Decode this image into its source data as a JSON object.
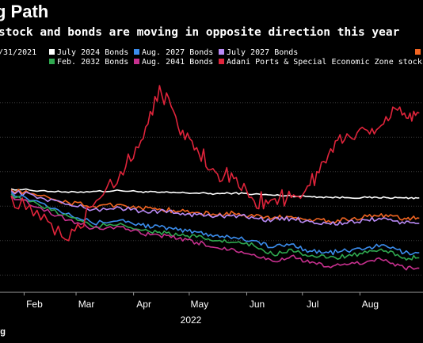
{
  "chart_data": {
    "type": "line",
    "title": "g Path",
    "subtitle": "stock and bonds are moving in opposite direction this year",
    "x_months": [
      "Feb",
      "Mar",
      "Apr",
      "May",
      "Jun",
      "Jul",
      "Aug"
    ],
    "x_year": "2022",
    "legend_placement": "top",
    "grid": true,
    "source": "rg",
    "legend_partial": "/31/2021",
    "x": [
      "2022-01-25",
      "2022-02-10",
      "2022-02-25",
      "2022-03-10",
      "2022-03-25",
      "2022-04-05",
      "2022-04-15",
      "2022-04-25",
      "2022-05-05",
      "2022-05-15",
      "2022-05-25",
      "2022-06-05",
      "2022-06-15",
      "2022-06-25",
      "2022-07-05",
      "2022-07-15",
      "2022-07-25",
      "2022-08-05",
      "2022-08-15",
      "2022-08-25",
      "2022-09-02"
    ],
    "series": [
      {
        "name": "July 2024 Bonds",
        "color": "#ffffff",
        "values": [
          105,
          104.5,
          104,
          104.3,
          104.5,
          104.2,
          104,
          103.9,
          103.8,
          103.6,
          103.8,
          103.5,
          103.2,
          103,
          102.8,
          102.6,
          102.5,
          102.5,
          102.5,
          102.4,
          102.4
        ]
      },
      {
        "name": "Aug. 2027 Bonds",
        "color": "#3b8ded",
        "values": [
          104,
          101,
          98,
          95,
          96,
          94.5,
          94,
          93,
          92.5,
          91.5,
          91,
          90,
          88,
          89,
          87,
          86.5,
          87,
          88,
          88.5,
          86.5,
          86.5
        ]
      },
      {
        "name": "July 2027 Bonds",
        "color": "#b98af5",
        "values": [
          104.5,
          102.5,
          100.5,
          99,
          99.5,
          98.5,
          98.5,
          98,
          97.5,
          97,
          97.5,
          96.5,
          96,
          96.5,
          95.5,
          95,
          95,
          96,
          96.5,
          95,
          95
        ]
      },
      {
        "name": "Feb. 2032 Bonds",
        "color": "#2fa84f",
        "values": [
          103.5,
          100,
          97,
          94,
          95,
          93,
          92.5,
          91.5,
          91,
          90,
          89.5,
          88.5,
          86,
          87.5,
          85.5,
          85,
          85.5,
          86.5,
          87,
          85,
          85
        ]
      },
      {
        "name": "Aug. 2041 Bonds",
        "color": "#c8308f",
        "values": [
          103,
          99.5,
          96,
          93.5,
          94,
          92,
          91.5,
          90.5,
          89.5,
          88,
          87.5,
          86,
          84,
          85.5,
          83.5,
          82.5,
          83,
          84,
          84.5,
          82,
          82
        ]
      },
      {
        "name": "Adani Ports & Special Economic Zone stocks",
        "color": "#e0243b",
        "values": [
          103,
          96,
          90,
          100,
          110,
          119,
          135,
          123,
          117,
          110,
          108,
          101.5,
          102,
          102.5,
          106,
          115,
          121,
          122,
          126,
          127,
          127
        ]
      },
      {
        "name": "",
        "color": "#f26522",
        "values": [
          104.8,
          103,
          101,
          100,
          100.5,
          99.5,
          99.2,
          98.5,
          98.2,
          97.5,
          98,
          97,
          96.5,
          97,
          96.2,
          95.8,
          96,
          97,
          97.5,
          96.5,
          96.5
        ]
      }
    ],
    "ylim": [
      75,
      138
    ],
    "gridlines_y": [
      80,
      90,
      100,
      110,
      120,
      130
    ]
  }
}
